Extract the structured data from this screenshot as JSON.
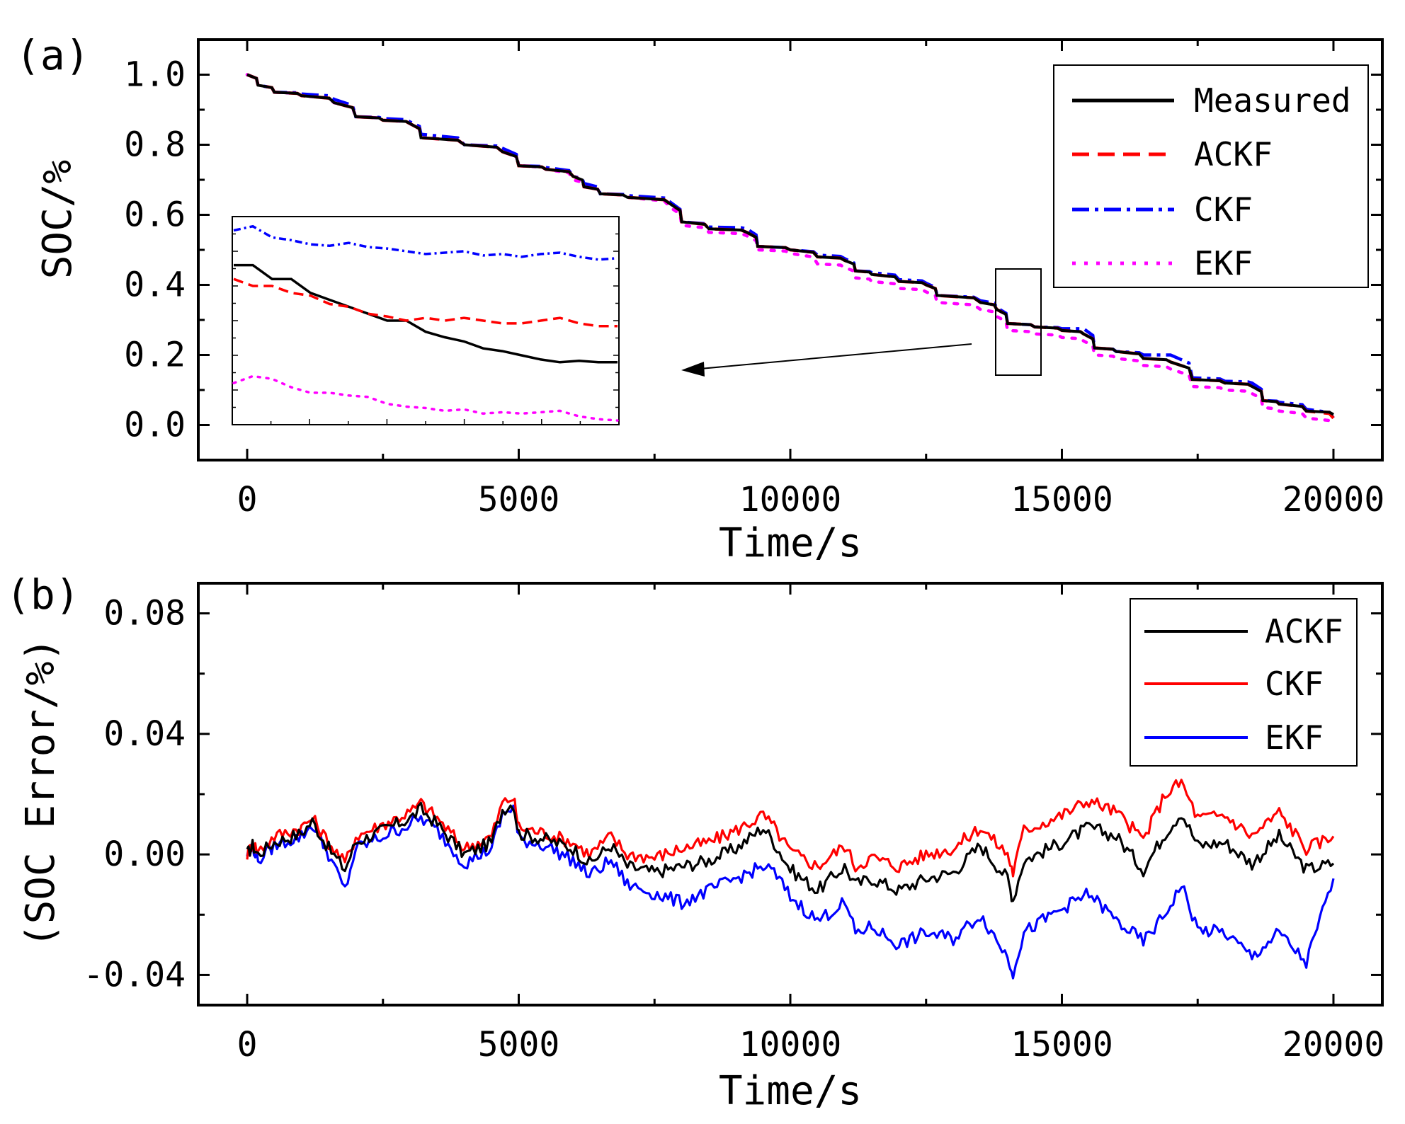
{
  "chart_data": [
    {
      "panel": "(a)",
      "type": "line",
      "xlabel": "Time/s",
      "ylabel": "SOC/%",
      "xlim": [
        -900,
        20900
      ],
      "ylim": [
        -0.1,
        1.1
      ],
      "xticks": [
        0,
        5000,
        10000,
        15000,
        20000
      ],
      "yticks": [
        0.0,
        0.2,
        0.4,
        0.6,
        0.8,
        1.0
      ],
      "xtick_labels": [
        "0",
        "5000",
        "10000",
        "15000",
        "20000"
      ],
      "ytick_labels": [
        "0.0",
        "0.2",
        "0.4",
        "0.6",
        "0.8",
        "1.0"
      ],
      "legend_position": "top-right",
      "series": [
        {
          "name": "Measured",
          "color": "#000000",
          "style": "solid",
          "x": [
            0,
            200,
            500,
            1000,
            1600,
            2000,
            2500,
            3000,
            3200,
            4000,
            4700,
            5000,
            5500,
            6000,
            6200,
            6500,
            7000,
            7800,
            8000,
            8500,
            9200,
            9400,
            10000,
            10500,
            11000,
            11200,
            11500,
            12000,
            12500,
            12700,
            13500,
            13800,
            14000,
            14500,
            15000,
            15400,
            15600,
            16000,
            16500,
            17000,
            17400,
            18000,
            18500,
            18700,
            19000,
            19500,
            20000
          ],
          "y": [
            1.0,
            0.97,
            0.95,
            0.94,
            0.92,
            0.88,
            0.87,
            0.86,
            0.82,
            0.8,
            0.78,
            0.74,
            0.73,
            0.71,
            0.68,
            0.66,
            0.65,
            0.63,
            0.58,
            0.56,
            0.55,
            0.51,
            0.5,
            0.48,
            0.47,
            0.44,
            0.43,
            0.41,
            0.4,
            0.37,
            0.35,
            0.33,
            0.29,
            0.28,
            0.27,
            0.26,
            0.22,
            0.21,
            0.19,
            0.18,
            0.13,
            0.12,
            0.11,
            0.07,
            0.06,
            0.04,
            0.03
          ]
        },
        {
          "name": "ACKF",
          "color": "#ff0000",
          "style": "dashed",
          "x": [
            0,
            200,
            500,
            1000,
            1600,
            2000,
            2500,
            3000,
            3200,
            4000,
            4700,
            5000,
            5500,
            6000,
            6200,
            6500,
            7000,
            7800,
            8000,
            8500,
            9200,
            9400,
            10000,
            10500,
            11000,
            11200,
            11500,
            12000,
            12500,
            12700,
            13500,
            13800,
            14000,
            14500,
            15000,
            15400,
            15600,
            16000,
            16500,
            17000,
            17400,
            18000,
            18500,
            18700,
            19000,
            19500,
            20000
          ],
          "y": [
            1.0,
            0.97,
            0.95,
            0.94,
            0.92,
            0.88,
            0.87,
            0.86,
            0.82,
            0.8,
            0.78,
            0.74,
            0.73,
            0.71,
            0.68,
            0.66,
            0.65,
            0.63,
            0.58,
            0.56,
            0.55,
            0.51,
            0.5,
            0.48,
            0.47,
            0.44,
            0.43,
            0.41,
            0.4,
            0.37,
            0.35,
            0.33,
            0.29,
            0.28,
            0.27,
            0.26,
            0.22,
            0.21,
            0.19,
            0.18,
            0.13,
            0.12,
            0.11,
            0.07,
            0.06,
            0.04,
            0.02
          ]
        },
        {
          "name": "CKF",
          "color": "#0000ff",
          "style": "dash-dot",
          "x": [
            0,
            200,
            500,
            1000,
            1600,
            2000,
            2500,
            3000,
            3200,
            4000,
            4700,
            5000,
            5500,
            6000,
            6200,
            6500,
            7000,
            7800,
            8000,
            8500,
            9200,
            9400,
            10000,
            10500,
            11000,
            11200,
            11500,
            12000,
            12500,
            12700,
            13500,
            13800,
            14000,
            14500,
            15000,
            15400,
            15600,
            16000,
            16500,
            17000,
            17400,
            18000,
            18500,
            18700,
            19000,
            19500,
            20000
          ],
          "y": [
            1.0,
            0.97,
            0.95,
            0.945,
            0.93,
            0.88,
            0.875,
            0.865,
            0.83,
            0.8,
            0.79,
            0.74,
            0.735,
            0.71,
            0.69,
            0.66,
            0.655,
            0.635,
            0.58,
            0.565,
            0.56,
            0.51,
            0.5,
            0.485,
            0.475,
            0.44,
            0.435,
            0.415,
            0.405,
            0.37,
            0.355,
            0.335,
            0.29,
            0.28,
            0.275,
            0.275,
            0.22,
            0.21,
            0.2,
            0.2,
            0.135,
            0.125,
            0.12,
            0.07,
            0.065,
            0.045,
            0.02
          ]
        },
        {
          "name": "EKF",
          "color": "#ff00ff",
          "style": "dotted",
          "x": [
            0,
            200,
            500,
            1000,
            1600,
            2000,
            2500,
            3000,
            3200,
            4000,
            4700,
            5000,
            5500,
            6000,
            6200,
            6500,
            7000,
            7800,
            8000,
            8500,
            9200,
            9400,
            10000,
            10500,
            11000,
            11200,
            11500,
            12000,
            12500,
            12700,
            13500,
            13800,
            14000,
            14500,
            15000,
            15400,
            15600,
            16000,
            16500,
            17000,
            17400,
            18000,
            18500,
            18700,
            19000,
            19500,
            20000
          ],
          "y": [
            1.0,
            0.97,
            0.95,
            0.94,
            0.92,
            0.88,
            0.87,
            0.86,
            0.82,
            0.8,
            0.78,
            0.74,
            0.73,
            0.7,
            0.68,
            0.66,
            0.65,
            0.62,
            0.57,
            0.55,
            0.54,
            0.5,
            0.49,
            0.46,
            0.45,
            0.42,
            0.41,
            0.39,
            0.38,
            0.35,
            0.33,
            0.31,
            0.27,
            0.26,
            0.25,
            0.24,
            0.2,
            0.19,
            0.17,
            0.16,
            0.11,
            0.1,
            0.09,
            0.05,
            0.04,
            0.02,
            0.0
          ]
        }
      ],
      "inset": {
        "x_range": [
          13800,
          14500
        ],
        "series": [
          {
            "name": "Measured",
            "values": [
              0.332,
              0.332,
              0.331,
              0.331,
              0.33,
              0.3295,
              0.329,
              0.3285,
              0.328,
              0.328,
              0.3272,
              0.3268,
              0.3265,
              0.326,
              0.3258,
              0.3255,
              0.3252,
              0.325,
              0.3251,
              0.325,
              0.325
            ]
          },
          {
            "name": "ACKF",
            "values": [
              0.331,
              0.3305,
              0.3305,
              0.33,
              0.3298,
              0.3292,
              0.329,
              0.3285,
              0.3283,
              0.328,
              0.3282,
              0.328,
              0.3282,
              0.328,
              0.3278,
              0.3278,
              0.328,
              0.3282,
              0.3278,
              0.3276,
              0.3276
            ]
          },
          {
            "name": "CKF",
            "values": [
              0.3345,
              0.3348,
              0.334,
              0.3338,
              0.3335,
              0.3334,
              0.3336,
              0.3333,
              0.3332,
              0.333,
              0.3328,
              0.3329,
              0.333,
              0.3327,
              0.3328,
              0.3326,
              0.3328,
              0.3329,
              0.3326,
              0.3324,
              0.3325
            ]
          },
          {
            "name": "EKF",
            "values": [
              0.3235,
              0.324,
              0.3238,
              0.3232,
              0.3228,
              0.3228,
              0.3226,
              0.3225,
              0.322,
              0.3218,
              0.3217,
              0.3215,
              0.3216,
              0.3213,
              0.3214,
              0.3213,
              0.3214,
              0.3215,
              0.3211,
              0.3209,
              0.3208
            ]
          }
        ]
      }
    },
    {
      "panel": "(b)",
      "type": "line",
      "xlabel": "Time/s",
      "ylabel": "(SOC Error/%)",
      "xlim": [
        -900,
        20900
      ],
      "ylim": [
        -0.05,
        0.09
      ],
      "xticks": [
        0,
        5000,
        10000,
        15000,
        20000
      ],
      "yticks": [
        -0.04,
        0.0,
        0.04,
        0.08
      ],
      "xtick_labels": [
        "0",
        "5000",
        "10000",
        "15000",
        "20000"
      ],
      "ytick_labels": [
        "-0.04",
        "0.00",
        "0.04",
        "0.08"
      ],
      "legend_position": "top-right",
      "series": [
        {
          "name": "ACKF",
          "color": "#000000",
          "x": [
            0,
            100,
            200,
            500,
            1000,
            1200,
            1500,
            1800,
            2000,
            2500,
            3000,
            3200,
            3500,
            4000,
            4500,
            4700,
            4900,
            5000,
            5500,
            6000,
            6300,
            6700,
            7000,
            7500,
            8000,
            8500,
            9000,
            9500,
            9700,
            10000,
            10500,
            11000,
            11200,
            11500,
            12000,
            12500,
            13000,
            13500,
            14000,
            14100,
            14300,
            15000,
            15500,
            16000,
            16500,
            16900,
            17200,
            17500,
            18000,
            18500,
            19000,
            19500,
            20000
          ],
          "y": [
            0.0,
            0.003,
            0.0,
            0.004,
            0.007,
            0.011,
            0.002,
            -0.005,
            0.004,
            0.008,
            0.012,
            0.015,
            0.01,
            0.0,
            0.004,
            0.015,
            0.017,
            0.007,
            0.005,
            0.002,
            -0.003,
            0.003,
            -0.004,
            -0.006,
            -0.004,
            -0.002,
            0.002,
            0.009,
            0.004,
            -0.005,
            -0.012,
            -0.004,
            -0.01,
            -0.008,
            -0.012,
            -0.008,
            -0.006,
            0.003,
            -0.008,
            -0.015,
            -0.002,
            0.004,
            0.009,
            0.006,
            -0.005,
            0.007,
            0.014,
            0.003,
            0.004,
            -0.003,
            0.006,
            -0.005,
            -0.003
          ]
        },
        {
          "name": "CKF",
          "color": "#ff0000",
          "x": [
            0,
            100,
            200,
            500,
            1000,
            1200,
            1500,
            1800,
            2000,
            2500,
            3000,
            3200,
            3500,
            4000,
            4500,
            4700,
            4900,
            5000,
            5500,
            6000,
            6300,
            6700,
            7000,
            7500,
            8000,
            8500,
            9000,
            9500,
            9700,
            10000,
            10500,
            11000,
            11200,
            11500,
            12000,
            12500,
            13000,
            13500,
            14000,
            14100,
            14300,
            15000,
            15500,
            16000,
            16500,
            16900,
            17200,
            17500,
            18000,
            18500,
            19000,
            19500,
            20000
          ],
          "y": [
            0.0,
            0.004,
            0.001,
            0.006,
            0.009,
            0.012,
            0.004,
            -0.003,
            0.006,
            0.01,
            0.014,
            0.017,
            0.012,
            0.002,
            0.006,
            0.017,
            0.019,
            0.009,
            0.007,
            0.004,
            0.0,
            0.006,
            0.0,
            -0.001,
            0.002,
            0.004,
            0.008,
            0.013,
            0.009,
            0.001,
            -0.004,
            0.003,
            -0.004,
            -0.001,
            -0.004,
            0.0,
            0.002,
            0.009,
            0.0,
            -0.006,
            0.008,
            0.013,
            0.018,
            0.014,
            0.005,
            0.02,
            0.024,
            0.012,
            0.013,
            0.006,
            0.014,
            0.002,
            0.006
          ]
        },
        {
          "name": "EKF",
          "color": "#0000ff",
          "x": [
            0,
            100,
            200,
            500,
            1000,
            1200,
            1500,
            1800,
            2000,
            2500,
            3000,
            3200,
            3500,
            4000,
            4500,
            4700,
            4900,
            5000,
            5500,
            6000,
            6300,
            6700,
            7000,
            7500,
            8000,
            8500,
            9000,
            9500,
            9700,
            10000,
            10500,
            11000,
            11200,
            11500,
            12000,
            12500,
            13000,
            13500,
            14000,
            14100,
            14300,
            15000,
            15500,
            16000,
            16500,
            16900,
            17200,
            17500,
            18000,
            18500,
            19000,
            19500,
            20000
          ],
          "y": [
            0.0,
            0.003,
            -0.002,
            0.003,
            0.006,
            0.01,
            0.0,
            -0.012,
            0.002,
            0.006,
            0.01,
            0.012,
            0.008,
            -0.003,
            0.002,
            0.013,
            0.016,
            0.005,
            0.003,
            -0.002,
            -0.007,
            -0.002,
            -0.01,
            -0.013,
            -0.016,
            -0.012,
            -0.008,
            -0.004,
            -0.006,
            -0.014,
            -0.022,
            -0.016,
            -0.026,
            -0.024,
            -0.03,
            -0.026,
            -0.028,
            -0.02,
            -0.034,
            -0.039,
            -0.026,
            -0.018,
            -0.013,
            -0.022,
            -0.029,
            -0.02,
            -0.01,
            -0.025,
            -0.026,
            -0.034,
            -0.026,
            -0.036,
            -0.008
          ]
        }
      ]
    }
  ]
}
